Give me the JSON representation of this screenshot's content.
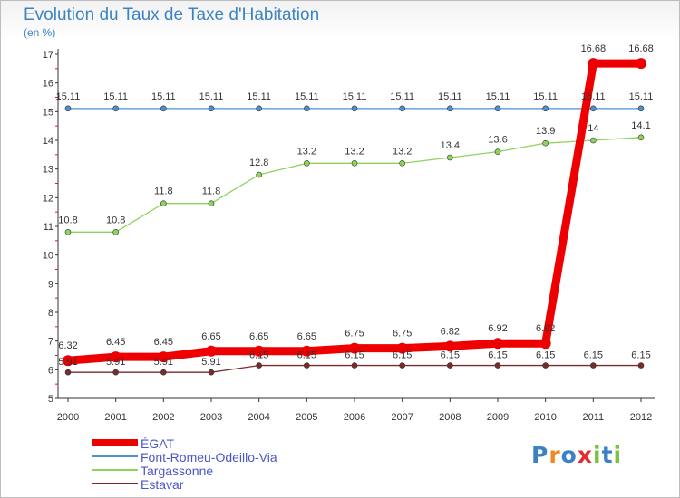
{
  "chart_data": {
    "type": "line",
    "title": "Evolution du Taux de Taxe d'Habitation",
    "subtitle": "(en %)",
    "xlabel": "",
    "ylabel": "",
    "ylim": [
      5,
      17
    ],
    "yticks": [
      5,
      6,
      7,
      8,
      9,
      10,
      11,
      12,
      13,
      14,
      15,
      16,
      17
    ],
    "categories": [
      "2000",
      "2001",
      "2002",
      "2003",
      "2004",
      "2005",
      "2006",
      "2007",
      "2008",
      "2009",
      "2010",
      "2011",
      "2012"
    ],
    "series": [
      {
        "name": "ÉGAT",
        "color": "#ee0000",
        "values": [
          6.32,
          6.45,
          6.45,
          6.65,
          6.65,
          6.65,
          6.75,
          6.75,
          6.82,
          6.92,
          6.92,
          16.68,
          16.68
        ],
        "labels": [
          "6.32",
          "6.45",
          "6.45",
          "6.65",
          "6.65",
          "6.65",
          "6.75",
          "6.75",
          "6.82",
          "6.92",
          "6.92",
          "16.68",
          "16.68"
        ]
      },
      {
        "name": "Font-Romeu-Odeillo-Via",
        "color": "#4d8fd1",
        "values": [
          15.11,
          15.11,
          15.11,
          15.11,
          15.11,
          15.11,
          15.11,
          15.11,
          15.11,
          15.11,
          15.11,
          15.11,
          15.11
        ],
        "labels": [
          "15.11",
          "15.11",
          "15.11",
          "15.11",
          "15.11",
          "15.11",
          "15.11",
          "15.11",
          "15.11",
          "15.11",
          "15.11",
          "15.11",
          "15.11"
        ]
      },
      {
        "name": "Targassonne",
        "color": "#8fd45a",
        "values": [
          10.8,
          10.8,
          11.8,
          11.8,
          12.8,
          13.2,
          13.2,
          13.2,
          13.4,
          13.6,
          13.9,
          14,
          14.1
        ],
        "labels": [
          "10.8",
          "10.8",
          "11.8",
          "11.8",
          "12.8",
          "13.2",
          "13.2",
          "13.2",
          "13.4",
          "13.6",
          "13.9",
          "14",
          "14.1"
        ]
      },
      {
        "name": "Estavar",
        "color": "#7a2a2a",
        "values": [
          5.91,
          5.91,
          5.91,
          5.91,
          6.15,
          6.15,
          6.15,
          6.15,
          6.15,
          6.15,
          6.15,
          6.15,
          6.15
        ],
        "labels": [
          "5.91",
          "5.91",
          "5.91",
          "5.91",
          "6.15",
          "6.15",
          "6.15",
          "6.15",
          "6.15",
          "6.15",
          "6.15",
          "6.15",
          "6.15"
        ]
      }
    ],
    "legend_position": "bottom-left"
  },
  "logo": {
    "letters": [
      "P",
      "r",
      "o",
      "x",
      "i",
      "t",
      "i"
    ],
    "colors": [
      "#3b82c4",
      "#f08a24",
      "#3b82c4",
      "#e52b2b",
      "#7cc142",
      "#3b82c4",
      "#7cc142"
    ]
  }
}
